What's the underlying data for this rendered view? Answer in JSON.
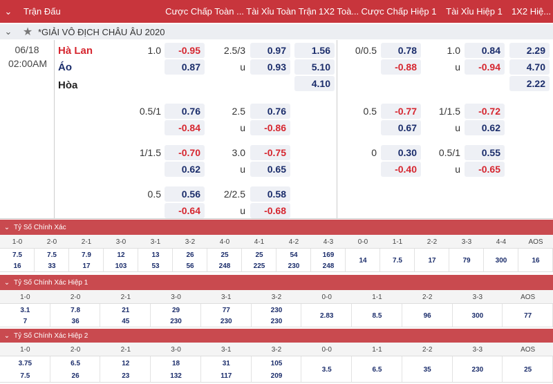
{
  "header": {
    "match": "Trận Đấu",
    "ft_handicap": "Cược Chấp Toàn ...",
    "ft_over_under": "Tài Xỉu Toàn Trận",
    "ft_1x2": "1X2 Toà...",
    "h1_handicap": "Cược Chấp Hiệp 1",
    "h1_over_under": "Tài Xỉu Hiệp 1",
    "h1_1x2": "1X2 Hiệ..."
  },
  "league": "*GIẢI VÔ ĐỊCH CHÂU ÂU 2020",
  "match": {
    "date": "06/18",
    "time": "02:00AM",
    "home": "Hà Lan",
    "away": "Áo",
    "draw": "Hòa"
  },
  "odds_groups": [
    {
      "ft_handicap": {
        "line": "1.0",
        "home": "-0.95",
        "away": "0.87"
      },
      "ft_over_under": {
        "line": "2.5/3",
        "over": "0.97",
        "under_label": "u",
        "under": "0.93"
      },
      "ft_1x2": [
        "1.56",
        "5.10",
        "4.10"
      ],
      "h1_handicap": {
        "line": "0/0.5",
        "home": "0.78",
        "away": "-0.88"
      },
      "h1_over_under": {
        "line": "1.0",
        "over": "0.84",
        "under_label": "u",
        "under": "-0.94"
      },
      "h1_1x2": [
        "2.29",
        "4.70",
        "2.22"
      ]
    },
    {
      "ft_handicap": {
        "line": "0.5/1",
        "home": "0.76",
        "away": "-0.84"
      },
      "ft_over_under": {
        "line": "2.5",
        "over": "0.76",
        "under_label": "u",
        "under": "-0.86"
      },
      "h1_handicap": {
        "line": "0.5",
        "home": "-0.77",
        "away": "0.67"
      },
      "h1_over_under": {
        "line": "1/1.5",
        "over": "-0.72",
        "under_label": "u",
        "under": "0.62"
      }
    },
    {
      "ft_handicap": {
        "line": "1/1.5",
        "home": "-0.70",
        "away": "0.62"
      },
      "ft_over_under": {
        "line": "3.0",
        "over": "-0.75",
        "under_label": "u",
        "under": "0.65"
      },
      "h1_handicap": {
        "line": "0",
        "home": "0.30",
        "away": "-0.40"
      },
      "h1_over_under": {
        "line": "0.5/1",
        "over": "0.55",
        "under_label": "u",
        "under": "-0.65"
      }
    },
    {
      "ft_handicap": {
        "line": "0.5",
        "home": "0.56",
        "away": "-0.64"
      },
      "ft_over_under": {
        "line": "2/2.5",
        "over": "0.58",
        "under_label": "u",
        "under": "-0.68"
      }
    }
  ],
  "correct_score": [
    {
      "title": "Tỷ Số Chính Xác",
      "scores": [
        "1-0",
        "2-0",
        "2-1",
        "3-0",
        "3-1",
        "3-2",
        "4-0",
        "4-1",
        "4-2",
        "4-3",
        "0-0",
        "1-1",
        "2-2",
        "3-3",
        "4-4",
        "AOS"
      ],
      "odds": [
        [
          "7.5",
          "16"
        ],
        [
          "7.5",
          "33"
        ],
        [
          "7.9",
          "17"
        ],
        [
          "12",
          "103"
        ],
        [
          "13",
          "53"
        ],
        [
          "26",
          "56"
        ],
        [
          "25",
          "248"
        ],
        [
          "25",
          "225"
        ],
        [
          "54",
          "230"
        ],
        [
          "169",
          "248"
        ],
        [
          "14"
        ],
        [
          "7.5"
        ],
        [
          "17"
        ],
        [
          "79"
        ],
        [
          "300"
        ],
        [
          "16"
        ]
      ]
    },
    {
      "title": "Tỷ Số Chính Xác Hiệp 1",
      "scores": [
        "1-0",
        "2-0",
        "2-1",
        "3-0",
        "3-1",
        "3-2",
        "0-0",
        "1-1",
        "2-2",
        "3-3",
        "AOS"
      ],
      "odds": [
        [
          "3.1",
          "7"
        ],
        [
          "7.8",
          "36"
        ],
        [
          "21",
          "45"
        ],
        [
          "29",
          "230"
        ],
        [
          "77",
          "230"
        ],
        [
          "230",
          "230"
        ],
        [
          "2.83"
        ],
        [
          "8.5"
        ],
        [
          "96"
        ],
        [
          "300"
        ],
        [
          "77"
        ]
      ]
    },
    {
      "title": "Tỷ Số Chính Xác Hiệp 2",
      "scores": [
        "1-0",
        "2-0",
        "2-1",
        "3-0",
        "3-1",
        "3-2",
        "0-0",
        "1-1",
        "2-2",
        "3-3",
        "AOS"
      ],
      "odds": [
        [
          "3.75",
          "7.5"
        ],
        [
          "6.5",
          "26"
        ],
        [
          "12",
          "23"
        ],
        [
          "18",
          "132"
        ],
        [
          "31",
          "117"
        ],
        [
          "105",
          "209"
        ],
        [
          "3.5"
        ],
        [
          "6.5"
        ],
        [
          "35"
        ],
        [
          "230"
        ],
        [
          "25"
        ]
      ]
    }
  ]
}
